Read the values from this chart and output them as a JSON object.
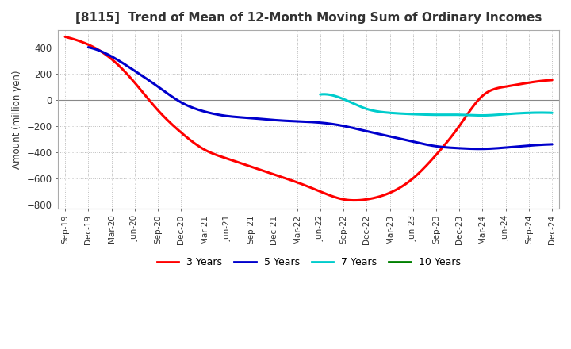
{
  "title": "[8115]  Trend of Mean of 12-Month Moving Sum of Ordinary Incomes",
  "ylabel": "Amount (million yen)",
  "background_color": "#ffffff",
  "grid_color": "#aaaaaa",
  "ylim": [
    -830,
    530
  ],
  "yticks": [
    -800,
    -600,
    -400,
    -200,
    0,
    200,
    400
  ],
  "x_labels": [
    "Sep-19",
    "Dec-19",
    "Mar-20",
    "Jun-20",
    "Sep-20",
    "Dec-20",
    "Mar-21",
    "Jun-21",
    "Sep-21",
    "Dec-21",
    "Mar-22",
    "Jun-22",
    "Sep-22",
    "Dec-22",
    "Mar-23",
    "Jun-23",
    "Sep-23",
    "Dec-23",
    "Mar-24",
    "Jun-24",
    "Sep-24",
    "Dec-24"
  ],
  "series": {
    "3 Years": {
      "color": "#ff0000",
      "data": [
        480,
        420,
        310,
        130,
        -80,
        -250,
        -380,
        -450,
        -510,
        -570,
        -630,
        -700,
        -760,
        -760,
        -710,
        -600,
        -420,
        -200,
        30,
        100,
        130,
        150
      ]
    },
    "5 Years": {
      "color": "#0000cc",
      "data": [
        null,
        400,
        330,
        220,
        100,
        -20,
        -90,
        -125,
        -140,
        -155,
        -165,
        -175,
        -200,
        -240,
        -280,
        -320,
        -355,
        -370,
        -375,
        -365,
        -350,
        -340
      ]
    },
    "7 Years": {
      "color": "#00cccc",
      "data": [
        null,
        null,
        null,
        null,
        null,
        null,
        null,
        null,
        null,
        null,
        null,
        40,
        5,
        -70,
        -100,
        -110,
        -115,
        -115,
        -120,
        -110,
        -100,
        -100
      ]
    },
    "10 Years": {
      "color": "#008000",
      "data": [
        null,
        null,
        null,
        null,
        null,
        null,
        null,
        null,
        null,
        null,
        null,
        null,
        null,
        null,
        null,
        null,
        null,
        null,
        null,
        null,
        null,
        null
      ]
    }
  },
  "legend_order": [
    "3 Years",
    "5 Years",
    "7 Years",
    "10 Years"
  ]
}
